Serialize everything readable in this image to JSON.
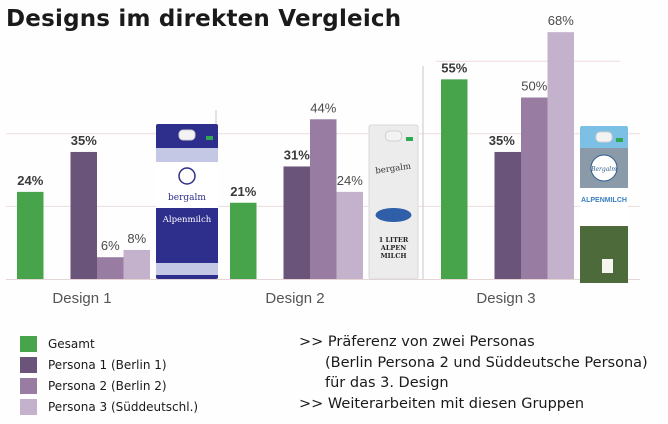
{
  "title": "Designs im direkten Vergleich",
  "chart_data": {
    "type": "bar",
    "title": "Designs im direkten Vergleich",
    "categories": [
      "Design 1",
      "Design 2",
      "Design 3"
    ],
    "series": [
      {
        "name": "Gesamt",
        "color": "#47a44b",
        "values": [
          24,
          21,
          55
        ],
        "labels": [
          "24%",
          "21%",
          "55%"
        ]
      },
      {
        "name": "Persona 1 (Berlin 1)",
        "color": "#6b5479",
        "values": [
          35,
          31,
          35
        ],
        "labels": [
          "35%",
          "31%",
          "35%"
        ]
      },
      {
        "name": "Persona 2 (Berlin 2)",
        "color": "#987ca2",
        "values": [
          6,
          44,
          50
        ],
        "labels": [
          "6%",
          "44%",
          "50%"
        ]
      },
      {
        "name": "Persona 3 (Süddeutschl.)",
        "color": "#c4b2cc",
        "values": [
          8,
          24,
          68
        ],
        "labels": [
          "8%",
          "24%",
          "68%"
        ]
      }
    ],
    "xlabel": "",
    "ylabel": "",
    "ylim": [
      0,
      70
    ],
    "grid": true,
    "legend": "bottom-left",
    "products": [
      {
        "design": "Design 1",
        "brand": "bergalm",
        "name": "Alpenmilch",
        "color": "#2e2e8c"
      },
      {
        "design": "Design 2",
        "brand": "bergalm",
        "name": "1 LITER ALPEN MILCH",
        "color": "#ececec"
      },
      {
        "design": "Design 3",
        "brand": "Bergalm",
        "name": "ALPENMILCH",
        "color": "#7cc0e6"
      }
    ]
  },
  "legend": [
    {
      "label": "Gesamt",
      "color": "#47a44b"
    },
    {
      "label": "Persona 1 (Berlin 1)",
      "color": "#6b5479"
    },
    {
      "label": "Persona 2 (Berlin 2)",
      "color": "#987ca2"
    },
    {
      "label": "Persona 3 (Süddeutschl.)",
      "color": "#c4b2cc"
    }
  ],
  "notes": [
    {
      "prefix": ">> ",
      "text": "Präferenz von zwei Personas"
    },
    {
      "prefix": "",
      "text": "(Berlin Persona 2 und Süddeutsche Persona)"
    },
    {
      "prefix": "",
      "text": "für das 3. Design"
    },
    {
      "prefix": ">> ",
      "text": "Weiterarbeiten mit diesen Gruppen"
    }
  ]
}
